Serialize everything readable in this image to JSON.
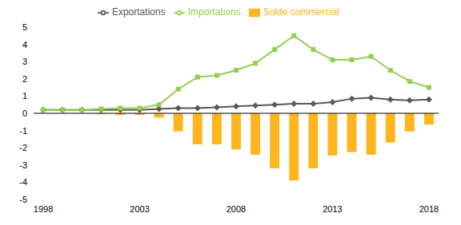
{
  "chart_data": {
    "type": "bar",
    "categories": [
      "1998",
      null,
      null,
      null,
      null,
      "2003",
      null,
      null,
      null,
      null,
      "2008",
      null,
      null,
      null,
      null,
      "2013",
      null,
      null,
      null,
      null,
      "2018"
    ],
    "series": [
      {
        "name": "Solde commercial",
        "type": "bar",
        "color": "#FFB61E",
        "values": [
          0.0,
          0.0,
          0.0,
          -0.05,
          -0.1,
          -0.1,
          -0.25,
          -1.05,
          -1.8,
          -1.8,
          -2.1,
          -2.4,
          -3.2,
          -3.9,
          -3.2,
          -2.45,
          -2.25,
          -2.4,
          -1.7,
          -1.05,
          -0.65
        ]
      },
      {
        "name": "Exportations",
        "type": "line",
        "color": "#595959",
        "marker": "diamond",
        "values": [
          0.2,
          0.2,
          0.2,
          0.2,
          0.2,
          0.2,
          0.25,
          0.3,
          0.3,
          0.35,
          0.4,
          0.45,
          0.5,
          0.55,
          0.55,
          0.65,
          0.85,
          0.9,
          0.8,
          0.75,
          0.8
        ]
      },
      {
        "name": "Importations",
        "type": "line",
        "color": "#92D050",
        "marker": "square",
        "values": [
          0.2,
          0.2,
          0.2,
          0.25,
          0.3,
          0.3,
          0.5,
          1.4,
          2.1,
          2.2,
          2.5,
          2.9,
          3.7,
          4.5,
          3.7,
          3.1,
          3.1,
          3.3,
          2.5,
          1.85,
          1.5
        ]
      }
    ],
    "ylim": [
      -5,
      5
    ],
    "yticks": [
      -5,
      -4,
      -3,
      -2,
      -1,
      0,
      1,
      2,
      3,
      4,
      5
    ],
    "grid": false,
    "legend": "top"
  }
}
